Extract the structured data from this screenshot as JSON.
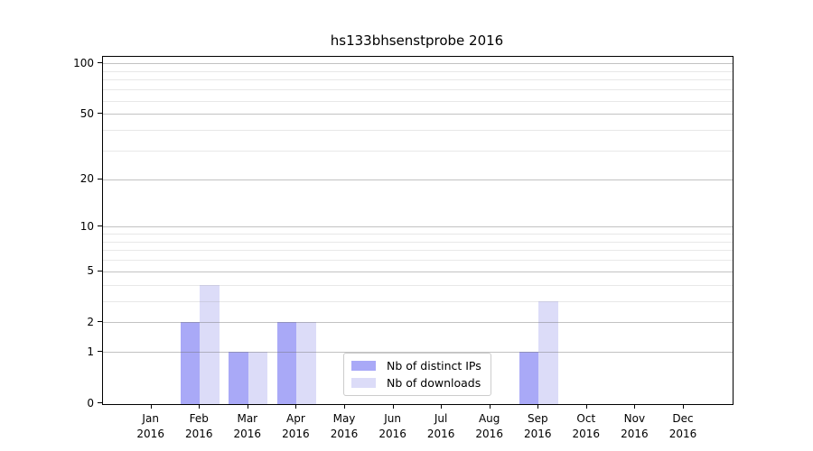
{
  "title": "hs133bhsenstprobe 2016",
  "chart_data": {
    "type": "bar",
    "title": "hs133bhsenstprobe 2016",
    "categories": [
      "Jan",
      "Feb",
      "Mar",
      "Apr",
      "May",
      "Jun",
      "Jul",
      "Aug",
      "Sep",
      "Oct",
      "Nov",
      "Dec"
    ],
    "year_label": "2016",
    "series": [
      {
        "name": "Nb of distinct IPs",
        "color": "#a9a9f7",
        "values": [
          0,
          2,
          1,
          2,
          0,
          0,
          0,
          0,
          1,
          0,
          0,
          0
        ]
      },
      {
        "name": "Nb of downloads",
        "color": "#dcdcf8",
        "values": [
          0,
          4,
          1,
          2,
          0,
          0,
          0,
          0,
          3,
          0,
          0,
          0
        ]
      }
    ],
    "xlabel": "",
    "ylabel": "",
    "y_scale": "log10(1+x)",
    "ylim": [
      0,
      110
    ],
    "y_tick_values": [
      0,
      1,
      2,
      5,
      10,
      20,
      50,
      100
    ],
    "y_tick_labels": [
      "0",
      "1",
      "2",
      "5",
      "10",
      "20",
      "50",
      "100"
    ],
    "y_minor_gridline_values": [
      3,
      4,
      6,
      7,
      8,
      9,
      30,
      40,
      60,
      70,
      80,
      90
    ],
    "grid": "both, drawn over bars",
    "legend_position": "lower center-right inside plot"
  },
  "legend": {
    "items": [
      {
        "label": "Nb of distinct IPs",
        "color": "#a9a9f7"
      },
      {
        "label": "Nb of downloads",
        "color": "#dcdcf8"
      }
    ]
  }
}
